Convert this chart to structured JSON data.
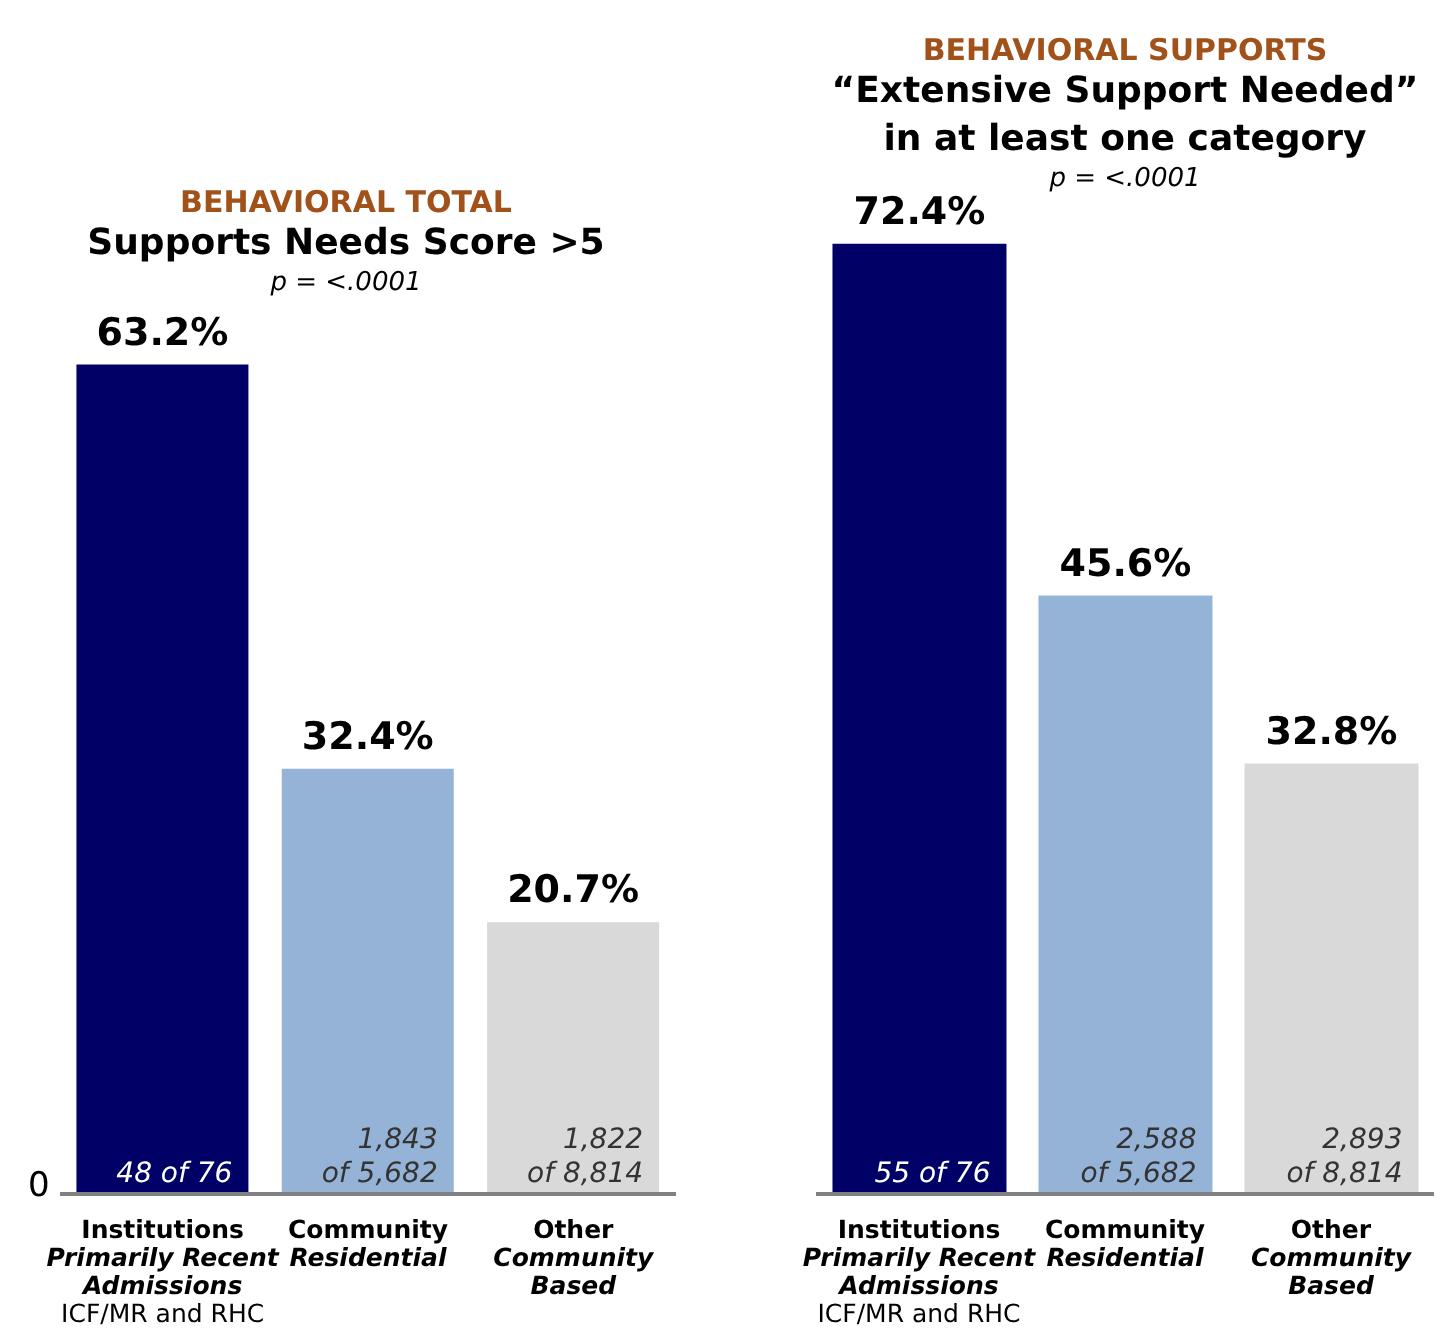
{
  "chart_data": [
    {
      "type": "bar",
      "title": "BEHAVIORAL TOTAL",
      "subtitle": "Supports Needs Score >5",
      "categories": [
        "Institutions\nPrimarily Recent\nAdmissions\nICF/MR and RHC",
        "Community\nResidential",
        "Other\nCommunity\nBased"
      ],
      "values": [
        63.2,
        32.4,
        20.7
      ],
      "colors": [
        "#000066",
        "#95b3d7",
        "#d9d9d9"
      ],
      "value_labels": [
        "63.2%",
        "32.4%",
        "20.7%"
      ],
      "annotations": [
        "p = <.0001",
        "48 of 76",
        "1,843\nof 5,682",
        "1,822\nof 8,814",
        "0"
      ]
    },
    {
      "type": "bar",
      "title": "BEHAVIORAL SUPPORTS",
      "subtitle": "“Extensive Support Needed”\nin at least one category",
      "categories": [
        "Institutions\nPrimarily Recent\nAdmissions\nICF/MR and RHC",
        "Community\nResidential",
        "Other\nCommunity\nBased"
      ],
      "values": [
        72.4,
        45.6,
        32.8
      ],
      "colors": [
        "#000066",
        "#95b3d7",
        "#d9d9d9"
      ],
      "value_labels": [
        "72.4%",
        "45.6%",
        "32.8%"
      ],
      "annotations": [
        "p = <.0001",
        "55 of 76",
        "2,588\nof 5,682",
        "2,893\nof 8,814"
      ]
    }
  ]
}
